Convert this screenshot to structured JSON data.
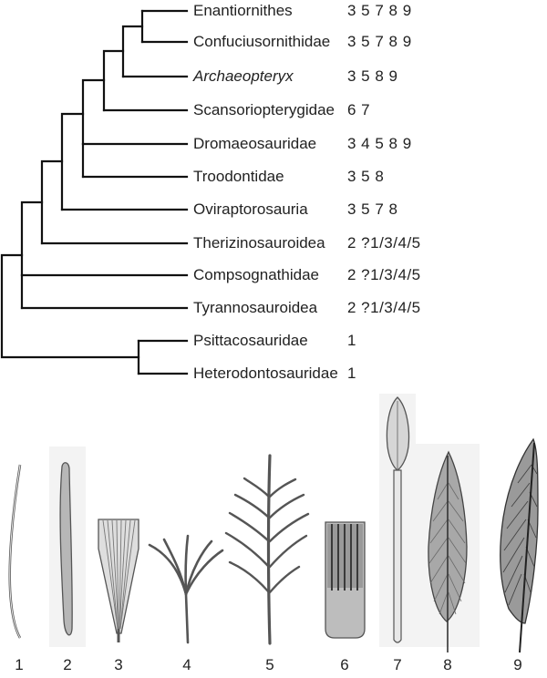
{
  "taxa": [
    {
      "name": "Enantiornithes",
      "chars": "3 5 7 8 9"
    },
    {
      "name": "Confuciusornithidae",
      "chars": "3 5 7 8 9"
    },
    {
      "name": "Archaeopteryx",
      "chars": "3 5 8 9"
    },
    {
      "name": "Scansoriopterygidae",
      "chars": "6 7"
    },
    {
      "name": "Dromaeosauridae",
      "chars": "3 4 5 8 9"
    },
    {
      "name": "Troodontidae",
      "chars": "3 5 8"
    },
    {
      "name": "Oviraptorosauria",
      "chars": "3 5 7 8"
    },
    {
      "name": "Therizinosauroidea",
      "chars": "2 ?1/3/4/5"
    },
    {
      "name": "Compsognathidae",
      "chars": "2 ?1/3/4/5"
    },
    {
      "name": "Tyrannosauroidea",
      "chars": "2 ?1/3/4/5"
    },
    {
      "name": "Psittacosauridae",
      "chars": "1"
    },
    {
      "name": "Heterodontosauridae",
      "chars": "1"
    }
  ],
  "feather_types": [
    "1",
    "2",
    "3",
    "4",
    "5",
    "6",
    "7",
    "8",
    "9"
  ],
  "colors": {
    "line": "#111111",
    "feather_fill": "#d2d2d2",
    "feather_stroke": "#555555"
  }
}
